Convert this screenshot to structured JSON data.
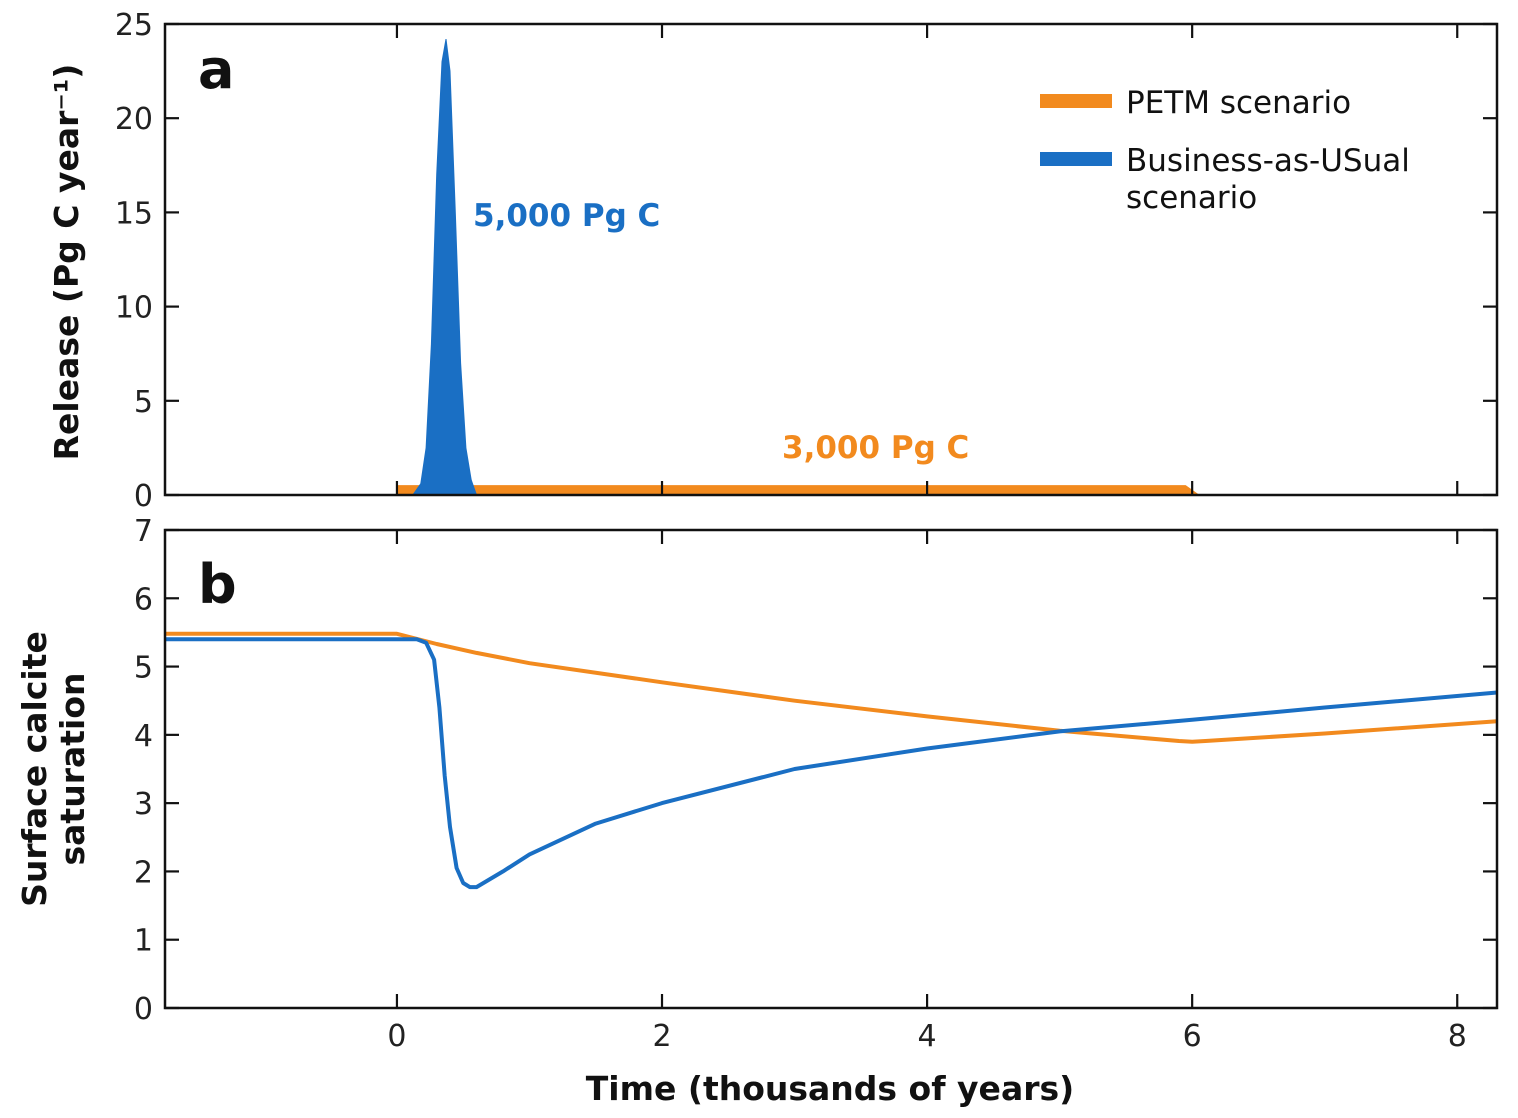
{
  "colors": {
    "petm": "#f28a1e",
    "bau": "#1a6fc4",
    "axis": "#111111"
  },
  "chart_data": [
    {
      "panel": "a",
      "type": "area",
      "xlabel": "",
      "ylabel": "Release (Pg C year⁻¹)",
      "xlim": [
        -1.75,
        8.3
      ],
      "ylim": [
        0,
        25
      ],
      "yticks": [
        0,
        5,
        10,
        15,
        20,
        25
      ],
      "xticks": [
        0,
        2,
        4,
        6,
        8
      ],
      "annotations": [
        {
          "text": "5,000 Pg C",
          "series": "Business-as-USual scenario"
        },
        {
          "text": "3,000 Pg C",
          "series": "PETM scenario"
        }
      ],
      "legend": {
        "placement": "top-right",
        "entries": [
          {
            "lines": [
              "PETM scenario"
            ],
            "series": "PETM scenario"
          },
          {
            "lines": [
              "Business-as-USual",
              "scenario"
            ],
            "series": "Business-as-USual scenario"
          }
        ]
      },
      "series": [
        {
          "name": "PETM scenario",
          "x": [
            -1.75,
            0.0,
            0.01,
            5.95,
            6.05,
            8.3
          ],
          "y": [
            0,
            0,
            0.5,
            0.5,
            0,
            0
          ]
        },
        {
          "name": "Business-as-USual scenario",
          "x": [
            -1.75,
            0.12,
            0.18,
            0.22,
            0.26,
            0.3,
            0.34,
            0.37,
            0.4,
            0.44,
            0.48,
            0.52,
            0.56,
            0.6,
            8.3
          ],
          "y": [
            0,
            0,
            0.6,
            2.5,
            8.0,
            17.0,
            23.0,
            24.2,
            22.5,
            15.0,
            7.0,
            2.5,
            0.8,
            0,
            0
          ]
        }
      ]
    },
    {
      "panel": "b",
      "type": "line",
      "xlabel": "Time (thousands of years)",
      "ylabel_lines": [
        "Surface calcite",
        "saturation"
      ],
      "xlim": [
        -1.75,
        8.3
      ],
      "ylim": [
        0,
        7
      ],
      "yticks": [
        0,
        1,
        2,
        3,
        4,
        5,
        6,
        7
      ],
      "xticks": [
        0,
        2,
        4,
        6,
        8
      ],
      "series": [
        {
          "name": "PETM scenario",
          "x": [
            -1.75,
            0.0,
            0.3,
            0.6,
            1.0,
            2.0,
            3.0,
            4.0,
            5.0,
            5.9,
            6.0,
            6.1,
            7.0,
            8.3
          ],
          "y": [
            5.48,
            5.48,
            5.33,
            5.2,
            5.05,
            4.77,
            4.5,
            4.27,
            4.06,
            3.91,
            3.9,
            3.91,
            4.02,
            4.2
          ]
        },
        {
          "name": "Business-as-USual scenario",
          "x": [
            -1.75,
            0.0,
            0.15,
            0.22,
            0.28,
            0.32,
            0.36,
            0.4,
            0.45,
            0.5,
            0.55,
            0.6,
            0.8,
            1.0,
            1.5,
            2.0,
            3.0,
            4.0,
            5.0,
            6.0,
            7.0,
            8.3
          ],
          "y": [
            5.4,
            5.4,
            5.4,
            5.35,
            5.1,
            4.4,
            3.4,
            2.65,
            2.05,
            1.83,
            1.77,
            1.77,
            2.0,
            2.25,
            2.7,
            3.0,
            3.5,
            3.8,
            4.05,
            4.22,
            4.4,
            4.62
          ]
        }
      ]
    }
  ]
}
